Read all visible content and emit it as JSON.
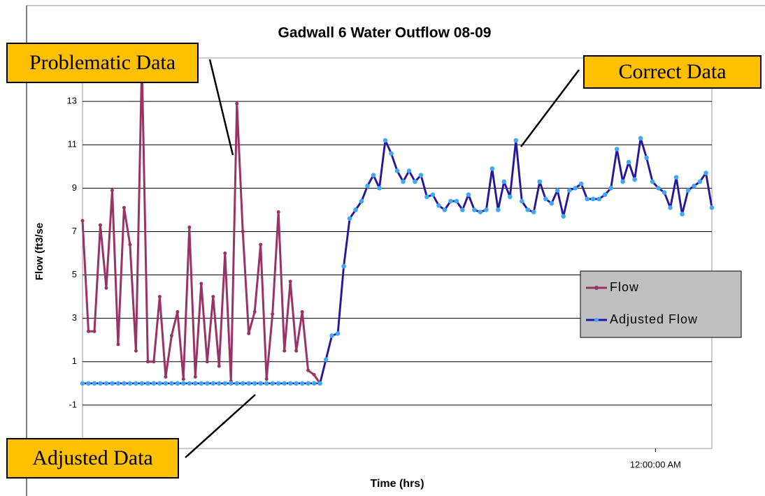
{
  "chart_data": {
    "type": "line",
    "title": "Gadwall 6 Water Outflow 08-09",
    "x_label": "Time (hrs)",
    "y_label": "Flow (ft3/se",
    "x": [
      0,
      1,
      2,
      3,
      4,
      5,
      6,
      7,
      8,
      9,
      10,
      11,
      12,
      13,
      14,
      15,
      16,
      17,
      18,
      19,
      20,
      21,
      22,
      23,
      24,
      25,
      26,
      27,
      28,
      29,
      30,
      31,
      32,
      33,
      34,
      35,
      36,
      37,
      38,
      39,
      40,
      41,
      42,
      43,
      44,
      45,
      46,
      47,
      48,
      49,
      50,
      51,
      52,
      53,
      54,
      55,
      56,
      57,
      58,
      59,
      60,
      61,
      62,
      63,
      64,
      65,
      66,
      67,
      68,
      69,
      70,
      71,
      72,
      73,
      74,
      75,
      76,
      77,
      78,
      79,
      80,
      81,
      82,
      83,
      84,
      85,
      86,
      87,
      88,
      89,
      90,
      91,
      92,
      93,
      94,
      95,
      96,
      97,
      98,
      99,
      100,
      101,
      102,
      103,
      104,
      105,
      106
    ],
    "xlim": [
      0,
      106
    ],
    "xticks": [
      {
        "value": 96.5,
        "label": "12:00:00 AM"
      }
    ],
    "ylim": [
      -3,
      15
    ],
    "yticks": [
      -1,
      1,
      3,
      5,
      7,
      9,
      11,
      13
    ],
    "grid": true,
    "legend": "right",
    "series": [
      {
        "name": "Flow",
        "color": "#993366",
        "marker_color": "#993366",
        "values": [
          7.5,
          2.4,
          2.4,
          7.3,
          4.4,
          8.9,
          1.8,
          8.1,
          6.4,
          1.5,
          14.8,
          1.0,
          1.0,
          4.0,
          0.3,
          2.2,
          3.3,
          0.2,
          7.2,
          0.3,
          4.6,
          1.0,
          4.0,
          0.8,
          6.0,
          0.1,
          12.9,
          7.0,
          2.3,
          3.3,
          6.4,
          0.2,
          3.2,
          7.9,
          1.5,
          4.7,
          1.5,
          3.3,
          0.6,
          0.4,
          0.0,
          1.1,
          2.2,
          2.3,
          5.4,
          7.6,
          8.0,
          8.4,
          9.1,
          9.6,
          9.0,
          11.2,
          10.6,
          9.8,
          9.3,
          9.8,
          9.3,
          9.6,
          8.6,
          8.7,
          8.2,
          8.0,
          8.4,
          8.4,
          8.0,
          8.7,
          8.0,
          7.9,
          8.0,
          9.9,
          8.0,
          9.3,
          8.6,
          11.2,
          8.4,
          8.0,
          7.9,
          9.3,
          8.5,
          8.3,
          8.9,
          7.7,
          8.9,
          9.0,
          9.2,
          8.5,
          8.5,
          8.5,
          8.7,
          9.0,
          10.8,
          9.3,
          10.2,
          9.4,
          11.3,
          10.4,
          9.3,
          9.0,
          8.8,
          8.1,
          9.5,
          7.8,
          8.9,
          9.1,
          9.3,
          9.7,
          8.1
        ]
      },
      {
        "name": "Adjusted Flow",
        "color": "#1a1aa8",
        "marker_color": "#3fa9f5",
        "values": [
          0,
          0,
          0,
          0,
          0,
          0,
          0,
          0,
          0,
          0,
          0,
          0,
          0,
          0,
          0,
          0,
          0,
          0,
          0,
          0,
          0,
          0,
          0,
          0,
          0,
          0,
          0,
          0,
          0,
          0,
          0,
          0,
          0,
          0,
          0,
          0,
          0,
          0,
          0,
          0,
          0.0,
          1.1,
          2.2,
          2.3,
          5.4,
          7.6,
          8.0,
          8.4,
          9.1,
          9.6,
          9.0,
          11.2,
          10.6,
          9.8,
          9.3,
          9.8,
          9.3,
          9.6,
          8.6,
          8.7,
          8.2,
          8.0,
          8.4,
          8.4,
          8.0,
          8.7,
          8.0,
          7.9,
          8.0,
          9.9,
          8.0,
          9.3,
          8.6,
          11.2,
          8.4,
          8.0,
          7.9,
          9.3,
          8.5,
          8.3,
          8.9,
          7.7,
          8.9,
          9.0,
          9.2,
          8.5,
          8.5,
          8.5,
          8.7,
          9.0,
          10.8,
          9.3,
          10.2,
          9.4,
          11.3,
          10.4,
          9.3,
          9.0,
          8.8,
          8.1,
          9.5,
          7.8,
          8.9,
          9.1,
          9.3,
          9.7,
          8.1
        ]
      }
    ],
    "annotations": [
      {
        "text": "Problematic Data"
      },
      {
        "text": "Correct Data"
      },
      {
        "text": "Adjusted Data"
      }
    ]
  }
}
